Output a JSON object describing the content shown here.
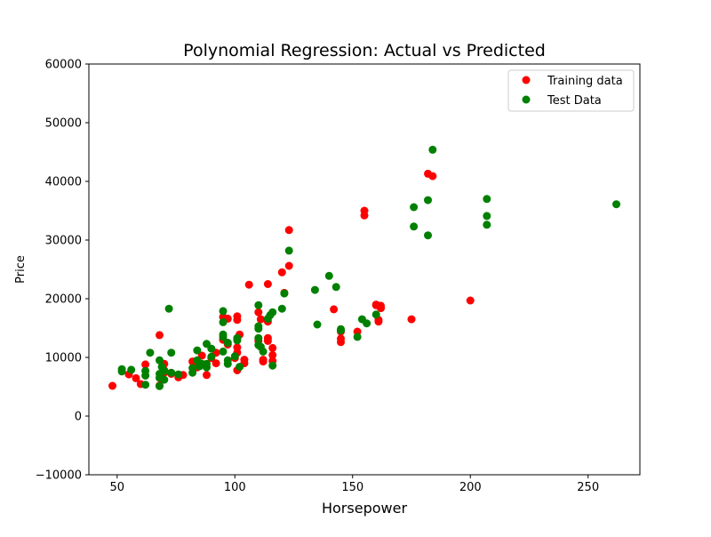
{
  "chart_data": {
    "type": "scatter",
    "title": "Polynomial Regression: Actual vs Predicted",
    "xlabel": "Horsepower",
    "ylabel": "Price",
    "xlim": [
      38,
      272
    ],
    "ylim": [
      -10000,
      60000
    ],
    "xticks": [
      50,
      100,
      150,
      200,
      250
    ],
    "yticks": [
      -10000,
      0,
      10000,
      20000,
      30000,
      40000,
      50000,
      60000
    ],
    "xtick_labels": [
      "50",
      "100",
      "150",
      "200",
      "250"
    ],
    "ytick_labels": [
      "−10000",
      "0",
      "10000",
      "20000",
      "30000",
      "40000",
      "50000",
      "60000"
    ],
    "grid": false,
    "legend_position": "top-right",
    "series": [
      {
        "name": "Training data",
        "color": "#ff0000",
        "points": [
          [
            48,
            5150
          ],
          [
            55,
            7100
          ],
          [
            58,
            6450
          ],
          [
            60,
            5450
          ],
          [
            62,
            8800
          ],
          [
            68,
            13800
          ],
          [
            68,
            5200
          ],
          [
            69,
            6300
          ],
          [
            70,
            7800
          ],
          [
            70,
            8900
          ],
          [
            70,
            7400
          ],
          [
            73,
            7200
          ],
          [
            76,
            7000
          ],
          [
            76,
            6600
          ],
          [
            78,
            7000
          ],
          [
            82,
            9300
          ],
          [
            84,
            8300
          ],
          [
            86,
            10300
          ],
          [
            88,
            7000
          ],
          [
            90,
            9900
          ],
          [
            92,
            9000
          ],
          [
            92,
            10800
          ],
          [
            95,
            13000
          ],
          [
            95,
            16900
          ],
          [
            97,
            16600
          ],
          [
            97,
            12200
          ],
          [
            100,
            9900
          ],
          [
            101,
            7800
          ],
          [
            101,
            10800
          ],
          [
            101,
            11700
          ],
          [
            101,
            17000
          ],
          [
            101,
            16400
          ],
          [
            102,
            13900
          ],
          [
            104,
            9600
          ],
          [
            104,
            9000
          ],
          [
            106,
            22400
          ],
          [
            110,
            17700
          ],
          [
            110,
            12800
          ],
          [
            111,
            16500
          ],
          [
            112,
            9300
          ],
          [
            112,
            9600
          ],
          [
            114,
            22500
          ],
          [
            114,
            16100
          ],
          [
            114,
            13300
          ],
          [
            114,
            12800
          ],
          [
            116,
            11600
          ],
          [
            116,
            10400
          ],
          [
            116,
            9400
          ],
          [
            120,
            24500
          ],
          [
            121,
            21000
          ],
          [
            123,
            25600
          ],
          [
            123,
            31700
          ],
          [
            142,
            18200
          ],
          [
            145,
            12600
          ],
          [
            145,
            13200
          ],
          [
            145,
            14400
          ],
          [
            152,
            14400
          ],
          [
            155,
            34200
          ],
          [
            155,
            35000
          ],
          [
            160,
            18900
          ],
          [
            160,
            19000
          ],
          [
            161,
            16400
          ],
          [
            161,
            16100
          ],
          [
            162,
            18800
          ],
          [
            162,
            18400
          ],
          [
            175,
            16500
          ],
          [
            182,
            41300
          ],
          [
            184,
            40900
          ],
          [
            200,
            19700
          ]
        ]
      },
      {
        "name": "Test Data",
        "color": "#008000",
        "points": [
          [
            52,
            8000
          ],
          [
            52,
            7600
          ],
          [
            56,
            7900
          ],
          [
            62,
            5350
          ],
          [
            62,
            7700
          ],
          [
            62,
            6900
          ],
          [
            64,
            10800
          ],
          [
            68,
            9500
          ],
          [
            68,
            7200
          ],
          [
            68,
            6500
          ],
          [
            68,
            5100
          ],
          [
            69,
            8400
          ],
          [
            70,
            6200
          ],
          [
            70,
            7700
          ],
          [
            72,
            18300
          ],
          [
            73,
            10800
          ],
          [
            73,
            7400
          ],
          [
            76,
            7100
          ],
          [
            82,
            8200
          ],
          [
            82,
            7400
          ],
          [
            84,
            11200
          ],
          [
            84,
            9500
          ],
          [
            85,
            8500
          ],
          [
            86,
            8900
          ],
          [
            88,
            12300
          ],
          [
            88,
            8900
          ],
          [
            88,
            8300
          ],
          [
            90,
            11500
          ],
          [
            90,
            10100
          ],
          [
            95,
            17900
          ],
          [
            95,
            16000
          ],
          [
            95,
            13900
          ],
          [
            95,
            13500
          ],
          [
            95,
            11000
          ],
          [
            97,
            12500
          ],
          [
            97,
            9500
          ],
          [
            97,
            8900
          ],
          [
            100,
            10200
          ],
          [
            101,
            13300
          ],
          [
            101,
            12900
          ],
          [
            102,
            8400
          ],
          [
            110,
            18900
          ],
          [
            110,
            15300
          ],
          [
            110,
            14900
          ],
          [
            110,
            13300
          ],
          [
            110,
            12100
          ],
          [
            111,
            11800
          ],
          [
            112,
            11000
          ],
          [
            114,
            16600
          ],
          [
            115,
            17200
          ],
          [
            116,
            17700
          ],
          [
            116,
            8600
          ],
          [
            120,
            18300
          ],
          [
            121,
            20900
          ],
          [
            123,
            28200
          ],
          [
            134,
            21500
          ],
          [
            135,
            15600
          ],
          [
            140,
            23900
          ],
          [
            143,
            22000
          ],
          [
            145,
            14800
          ],
          [
            145,
            14600
          ],
          [
            152,
            13500
          ],
          [
            154,
            16500
          ],
          [
            156,
            15800
          ],
          [
            160,
            17300
          ],
          [
            176,
            35600
          ],
          [
            176,
            32300
          ],
          [
            182,
            36800
          ],
          [
            182,
            30800
          ],
          [
            184,
            45400
          ],
          [
            207,
            37000
          ],
          [
            207,
            34100
          ],
          [
            207,
            32600
          ],
          [
            262,
            36100
          ]
        ]
      }
    ]
  }
}
